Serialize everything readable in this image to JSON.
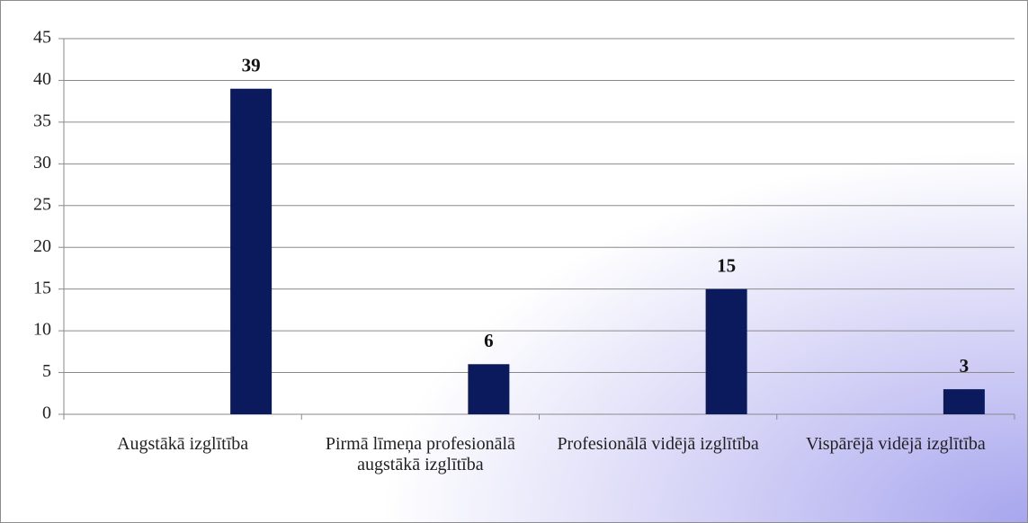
{
  "chart_data": {
    "type": "bar",
    "categories": [
      "Augstākā izglītība",
      "Pirmā līmeņa profesionālā augstākā izglītība",
      "Profesionālā vidējā izglītība",
      "Vispārējā vidējā izglītība"
    ],
    "values": [
      39,
      6,
      15,
      3
    ],
    "color": "#0b1a5c",
    "ylim": [
      0,
      45
    ],
    "yticks": [
      0,
      5,
      10,
      15,
      20,
      25,
      30,
      35,
      40,
      45
    ],
    "grid": true
  }
}
